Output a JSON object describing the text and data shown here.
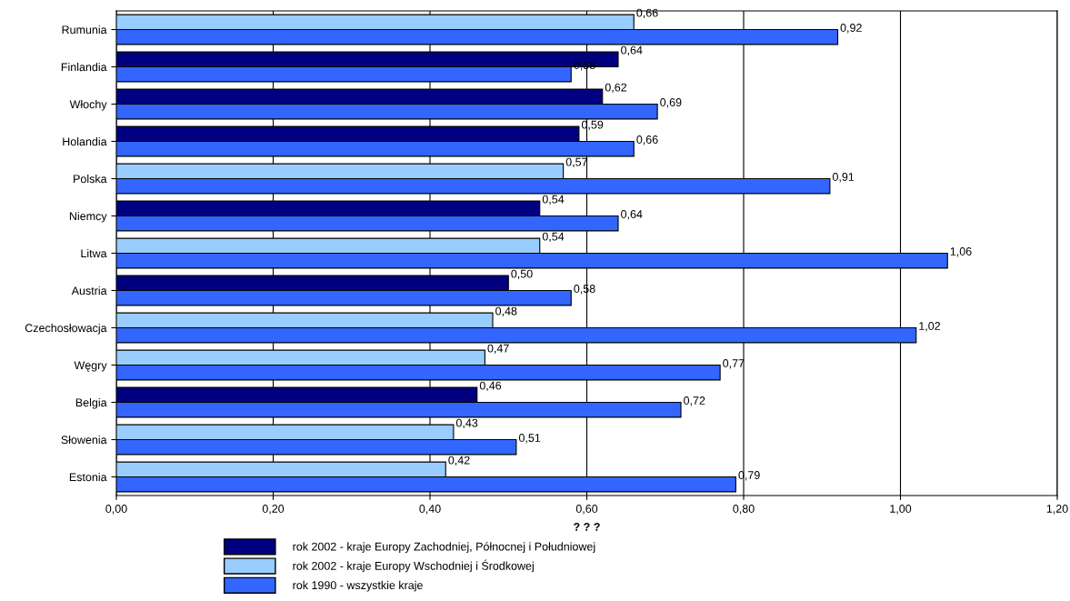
{
  "chart_data": {
    "type": "bar",
    "orientation": "horizontal",
    "xlabel": "? ? ?",
    "categories": [
      "Rumunia",
      "Finlandia",
      "Włochy",
      "Holandia",
      "Polska",
      "Niemcy",
      "Litwa",
      "Austria",
      "Czechosłowacja",
      "Węgry",
      "Belgia",
      "Słowenia",
      "Estonia"
    ],
    "series": [
      {
        "name": "rok 2002 - kraje Europy Zachodniej, Północnej i Południowej",
        "color": "#000080",
        "values": [
          null,
          0.64,
          0.62,
          0.59,
          null,
          0.54,
          null,
          0.5,
          null,
          null,
          0.46,
          null,
          null
        ],
        "value_labels": [
          null,
          "0,64",
          "0,62",
          "0,59",
          null,
          "0,54",
          null,
          "0,50",
          null,
          null,
          "0,46",
          null,
          null
        ]
      },
      {
        "name": "rok 2002 - kraje Europy Wschodniej i Środkowej",
        "color": "#99ccff",
        "values": [
          0.66,
          null,
          null,
          null,
          0.57,
          null,
          0.54,
          null,
          0.48,
          0.47,
          null,
          0.43,
          0.42
        ],
        "value_labels": [
          "0,66",
          null,
          null,
          null,
          "0,57",
          null,
          "0,54",
          null,
          "0,48",
          "0,47",
          null,
          "0,43",
          "0,42"
        ]
      },
      {
        "name": "rok 1990 - wszystkie kraje",
        "color": "#3366ff",
        "values": [
          0.92,
          0.58,
          0.69,
          0.66,
          0.91,
          0.64,
          1.06,
          0.58,
          1.02,
          0.77,
          0.72,
          0.51,
          0.79
        ],
        "value_labels": [
          "0,92",
          "0,58",
          "0,69",
          "0,66",
          "0,91",
          "0,64",
          "1,06",
          "0,58",
          "1,02",
          "0,77",
          "0,72",
          "0,51",
          "0,79"
        ]
      }
    ],
    "xlim": [
      0,
      1.2
    ],
    "xticks": [
      {
        "value": 0,
        "label": "0,00"
      },
      {
        "value": 0.2,
        "label": "0,20"
      },
      {
        "value": 0.4,
        "label": "0,40"
      },
      {
        "value": 0.6,
        "label": "0,60"
      },
      {
        "value": 0.8,
        "label": "0,80"
      },
      {
        "value": 1.0,
        "label": "1,00"
      },
      {
        "value": 1.2,
        "label": "1,20"
      }
    ],
    "grid": "x",
    "legend": "bottom"
  }
}
